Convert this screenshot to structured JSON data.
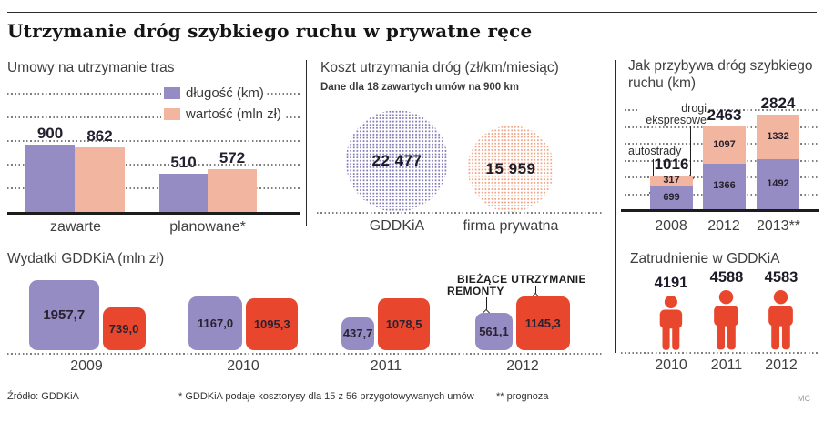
{
  "title": "Utrzymanie dróg szybkiego ruchu w prywatne ręce",
  "colors": {
    "purple": "#948cc3",
    "salmon": "#f1b5a0",
    "red": "#e8472e",
    "dot_purple": "#7d76b2",
    "dot_salmon": "#ec9a7a",
    "axis": "#1c1c1c"
  },
  "chart_data": [
    {
      "id": "contracts",
      "type": "bar",
      "title": "Umowy na utrzymanie tras",
      "categories": [
        "zawarte",
        "planowane*"
      ],
      "series": [
        {
          "name": "długość (km)",
          "color": "#948cc3",
          "values": [
            900,
            510
          ]
        },
        {
          "name": "wartość (mln zł)",
          "color": "#f1b5a0",
          "values": [
            862,
            572
          ]
        }
      ],
      "ylim": [
        0,
        1600
      ],
      "grid": "dotted-horizontal",
      "legend_position": "top-right"
    },
    {
      "id": "cost",
      "type": "bubble",
      "title": "Koszt utrzymania dróg (zł/km/miesiąc)",
      "subtitle": "Dane dla 18 zawartych umów na 900 km",
      "categories": [
        "GDDKiA",
        "firma prywatna"
      ],
      "values": [
        22477,
        15959
      ],
      "value_labels": [
        "22 477",
        "15 959"
      ]
    },
    {
      "id": "growth",
      "type": "stacked-bar",
      "title": "Jak przybywa dróg szybkiego ruchu (km)",
      "categories": [
        "2008",
        "2012",
        "2013**"
      ],
      "series": [
        {
          "name": "autostrady",
          "color": "#948cc3",
          "values": [
            699,
            1366,
            1492
          ]
        },
        {
          "name": "drogi ekspresowe",
          "color": "#f1b5a0",
          "values": [
            317,
            1097,
            1332
          ]
        }
      ],
      "totals": [
        1016,
        2463,
        2824
      ],
      "ylim": [
        0,
        3000
      ],
      "grid": "dotted-horizontal"
    },
    {
      "id": "spending",
      "type": "bar",
      "title": "Wydatki GDDKiA (mln zł)",
      "categories": [
        "2009",
        "2010",
        "2011",
        "2012"
      ],
      "series": [
        {
          "name": "REMONTY",
          "color": "#948cc3",
          "values": [
            1957.7,
            1167.0,
            437.7,
            561.1
          ],
          "labels": [
            "1957,7",
            "1167,0",
            "437,7",
            "561,1"
          ]
        },
        {
          "name": "BIEŻĄCE UTRZYMANIE",
          "color": "#e8472e",
          "values": [
            739.0,
            1095.3,
            1078.5,
            1145.3
          ],
          "labels": [
            "739,0",
            "1095,3",
            "1078,5",
            "1145,3"
          ]
        }
      ],
      "note": "squares area-proportional to values"
    },
    {
      "id": "employment",
      "type": "pictogram",
      "title": "Zatrudnienie w GDDKiA",
      "categories": [
        "2010",
        "2011",
        "2012"
      ],
      "values": [
        4191,
        4588,
        4583
      ]
    }
  ],
  "footer": {
    "source": "Źródło: GDDKiA",
    "note1": "* GDDKiA podaje kosztorysy dla 15 z 56 przygotowywanych umów",
    "note2": "** prognoza",
    "credit": "MC"
  }
}
